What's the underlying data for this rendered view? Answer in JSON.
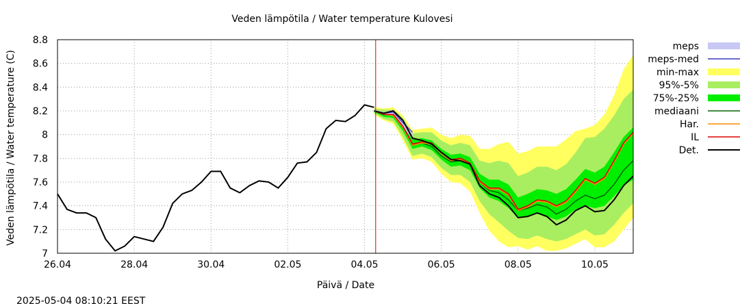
{
  "chart_data": {
    "type": "line",
    "title": "Veden lämpötila / Water temperature Kulovesi",
    "xlabel": "Päivä / Date",
    "ylabel": "Veden lämpötila / Water temperature (C)",
    "timestamp": "2025-05-04 08:10:21 EEST",
    "xlim": [
      "26.04",
      "11.05"
    ],
    "ylim": [
      7.0,
      8.8
    ],
    "grid": true,
    "legend_position": "right",
    "x_ticks": [
      "26.04",
      "28.04",
      "30.04",
      "02.05",
      "04.05",
      "06.05",
      "08.05",
      "10.05"
    ],
    "y_ticks": [
      "7",
      "7.2",
      "7.4",
      "7.6",
      "7.8",
      "8",
      "8.2",
      "8.4",
      "8.6",
      "8.8"
    ],
    "forecast_start": "04.05 07:00",
    "colors": {
      "meps": "#c8c8f5",
      "meps-med": "#3a3ab8",
      "min-max": "#ffff60",
      "95%-5%": "#a8ee60",
      "75%-25%": "#00ee00",
      "mediaani": "#006400",
      "Har.": "#ff8c00",
      "IL": "#dd0000",
      "Det.": "#000000",
      "forecast_line": "#dd0000"
    },
    "legend": [
      "meps",
      "meps-med",
      "min-max",
      "95%-5%",
      "75%-25%",
      "mediaani",
      "Har.",
      "IL",
      "Det."
    ],
    "observed": {
      "day": [
        0,
        0.25,
        0.5,
        0.75,
        1.0,
        1.25,
        1.5,
        1.75,
        2.0,
        2.25,
        2.5,
        2.75,
        3.0,
        3.25,
        3.5,
        3.75,
        4.0,
        4.25,
        4.5,
        4.75,
        5.0,
        5.25,
        5.5,
        5.75,
        6.0,
        6.25,
        6.5,
        6.75,
        7.0,
        7.25,
        7.5,
        7.75,
        8.0,
        8.25
      ],
      "values": [
        7.5,
        7.37,
        7.34,
        7.34,
        7.3,
        7.12,
        7.02,
        7.06,
        7.14,
        7.12,
        7.1,
        7.22,
        7.42,
        7.5,
        7.53,
        7.6,
        7.69,
        7.69,
        7.55,
        7.51,
        7.57,
        7.61,
        7.6,
        7.55,
        7.64,
        7.76,
        7.77,
        7.85,
        8.05,
        8.12,
        8.11,
        8.16,
        8.25,
        8.23
      ]
    },
    "forecast": {
      "day": [
        8.25,
        8.5,
        8.75,
        9.0,
        9.25,
        9.5,
        9.75,
        10.0,
        10.25,
        10.5,
        10.75,
        11.0,
        11.25,
        11.5,
        11.75,
        12.0,
        12.25,
        12.5,
        12.75,
        13.0,
        13.25,
        13.5,
        13.75,
        14.0,
        14.25,
        14.5,
        14.75,
        15.0
      ],
      "det": [
        8.2,
        8.18,
        8.2,
        8.12,
        7.97,
        7.95,
        7.92,
        7.85,
        7.79,
        7.78,
        7.75,
        7.57,
        7.5,
        7.47,
        7.4,
        7.3,
        7.31,
        7.34,
        7.31,
        7.24,
        7.28,
        7.36,
        7.4,
        7.35,
        7.36,
        7.45,
        7.57,
        7.65
      ],
      "mediaani": [
        8.2,
        8.17,
        8.16,
        8.06,
        7.92,
        7.93,
        7.9,
        7.82,
        7.77,
        7.78,
        7.75,
        7.6,
        7.53,
        7.51,
        7.45,
        7.36,
        7.38,
        7.41,
        7.39,
        7.33,
        7.37,
        7.44,
        7.49,
        7.46,
        7.49,
        7.58,
        7.7,
        7.78
      ],
      "il": [
        8.2,
        8.17,
        8.17,
        8.07,
        7.92,
        7.94,
        7.93,
        7.85,
        7.79,
        7.8,
        7.76,
        7.61,
        7.55,
        7.55,
        7.5,
        7.37,
        7.4,
        7.45,
        7.44,
        7.4,
        7.44,
        7.53,
        7.63,
        7.59,
        7.64,
        7.78,
        7.93,
        8.02
      ],
      "har": [
        8.2,
        8.17,
        8.16,
        8.06,
        7.91,
        7.93,
        7.92,
        7.84,
        7.78,
        7.79,
        7.75,
        7.6,
        7.54,
        7.54,
        7.49,
        7.36,
        7.39,
        7.44,
        7.43,
        7.39,
        7.43,
        7.52,
        7.62,
        7.58,
        7.63,
        7.77,
        7.92,
        8.01
      ],
      "meps_med": [
        8.2,
        8.18,
        8.19,
        8.1,
        8.02
      ],
      "meps_lo": [
        8.2,
        8.17,
        8.17,
        8.07,
        7.96
      ],
      "meps_hi": [
        8.21,
        8.19,
        8.21,
        8.12,
        8.02
      ],
      "p25": [
        8.19,
        8.15,
        8.14,
        8.03,
        7.88,
        7.9,
        7.87,
        7.79,
        7.73,
        7.74,
        7.7,
        7.55,
        7.47,
        7.44,
        7.38,
        7.3,
        7.31,
        7.34,
        7.31,
        7.28,
        7.31,
        7.37,
        7.4,
        7.38,
        7.4,
        7.48,
        7.57,
        7.62
      ],
      "p75": [
        8.21,
        8.19,
        8.19,
        8.1,
        7.96,
        7.97,
        7.95,
        7.88,
        7.83,
        7.84,
        7.81,
        7.67,
        7.62,
        7.62,
        7.58,
        7.47,
        7.5,
        7.54,
        7.53,
        7.5,
        7.54,
        7.62,
        7.71,
        7.68,
        7.73,
        7.85,
        7.98,
        8.06
      ],
      "p5": [
        8.18,
        8.13,
        8.11,
        7.98,
        7.82,
        7.84,
        7.81,
        7.72,
        7.66,
        7.66,
        7.6,
        7.44,
        7.33,
        7.26,
        7.19,
        7.13,
        7.12,
        7.15,
        7.12,
        7.1,
        7.12,
        7.16,
        7.2,
        7.15,
        7.16,
        7.24,
        7.34,
        7.42
      ],
      "p95": [
        8.22,
        8.21,
        8.21,
        8.14,
        8.01,
        8.02,
        8.02,
        7.95,
        7.91,
        7.93,
        7.91,
        7.78,
        7.76,
        7.78,
        7.76,
        7.65,
        7.68,
        7.73,
        7.73,
        7.7,
        7.75,
        7.85,
        7.97,
        7.98,
        8.05,
        8.16,
        8.3,
        8.38
      ],
      "min": [
        8.17,
        8.12,
        8.09,
        7.95,
        7.79,
        7.8,
        7.77,
        7.67,
        7.6,
        7.59,
        7.52,
        7.34,
        7.19,
        7.1,
        7.05,
        7.06,
        7.03,
        7.06,
        7.02,
        7.02,
        7.04,
        7.08,
        7.12,
        7.05,
        7.05,
        7.1,
        7.2,
        7.3
      ],
      "max": [
        8.23,
        8.22,
        8.23,
        8.16,
        8.04,
        8.05,
        8.06,
        8.0,
        7.97,
        8.0,
        7.99,
        7.88,
        7.88,
        7.92,
        7.94,
        7.84,
        7.86,
        7.9,
        7.9,
        7.9,
        7.96,
        8.03,
        8.05,
        8.08,
        8.17,
        8.33,
        8.55,
        8.67
      ]
    }
  }
}
